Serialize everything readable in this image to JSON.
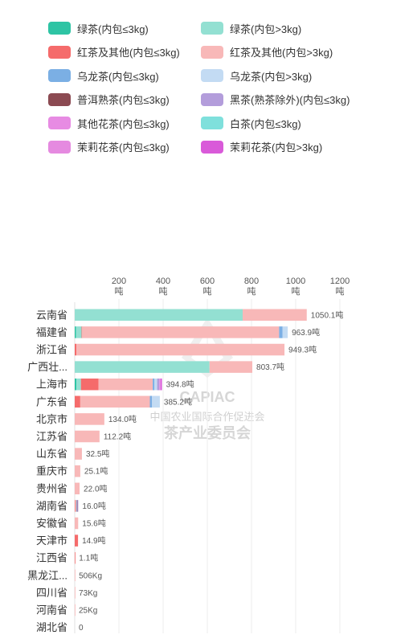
{
  "legend": [
    {
      "name": "绿茶(内包≤3kg)",
      "color": "#2ec4a4"
    },
    {
      "name": "绿茶(内包>3kg)",
      "color": "#93e0d2"
    },
    {
      "name": "红茶及其他(内包≤3kg)",
      "color": "#f56b6b"
    },
    {
      "name": "红茶及其他(内包>3kg)",
      "color": "#f8b8b8"
    },
    {
      "name": "乌龙茶(内包≤3kg)",
      "color": "#7bafe4"
    },
    {
      "name": "乌龙茶(内包>3kg)",
      "color": "#c3dbf3"
    },
    {
      "name": "普洱熟茶(内包≤3kg)",
      "color": "#8b4a52"
    },
    {
      "name": "黑茶(熟茶除外)(内包≤3kg)",
      "color": "#b39ddb"
    },
    {
      "name": "其他花茶(内包≤3kg)",
      "color": "#e78be3"
    },
    {
      "name": "白茶(内包≤3kg)",
      "color": "#7fe0dc"
    },
    {
      "name": "茉莉花茶(内包≤3kg)",
      "color": "#e58ae0"
    },
    {
      "name": "茉莉花茶(内包>3kg)",
      "color": "#d95ad9"
    }
  ],
  "watermark": {
    "logo": "CAPIAC",
    "org": "中国农业国际合作促进会",
    "committee": "茶产业委员会"
  },
  "chart_data": {
    "type": "bar",
    "orientation": "horizontal",
    "stacked": true,
    "xlim": [
      0,
      1200
    ],
    "xticks": [
      {
        "value": 200,
        "label": "200",
        "unit": "吨"
      },
      {
        "value": 400,
        "label": "400",
        "unit": "吨"
      },
      {
        "value": 600,
        "label": "600",
        "unit": "吨"
      },
      {
        "value": 800,
        "label": "800",
        "unit": "吨"
      },
      {
        "value": 1000,
        "label": "1000",
        "unit": "吨"
      },
      {
        "value": 1200,
        "label": "1200",
        "unit": "吨"
      }
    ],
    "categories": [
      "云南省",
      "福建省",
      "浙江省",
      "广西壮...",
      "上海市",
      "广东省",
      "北京市",
      "江苏省",
      "山东省",
      "重庆市",
      "贵州省",
      "湖南省",
      "安徽省",
      "天津市",
      "江西省",
      "黑龙江...",
      "四川省",
      "河南省",
      "湖北省"
    ],
    "totals": [
      "1050.1吨",
      "963.9吨",
      "949.3吨",
      "803.7吨",
      "394.8吨",
      "385.2吨",
      "134.0吨",
      "112.2吨",
      "32.5吨",
      "25.1吨",
      "22.0吨",
      "16.0吨",
      "15.6吨",
      "14.9吨",
      "1.1吨",
      "506Kg",
      "73Kg",
      "25Kg",
      "0"
    ],
    "series": [
      {
        "name": "绿茶(内包≤3kg)",
        "values": [
          0,
          6,
          0,
          0,
          8,
          0,
          0,
          0,
          0,
          0,
          0,
          0,
          0,
          0,
          0,
          0,
          0,
          0,
          0
        ]
      },
      {
        "name": "绿茶(内包>3kg)",
        "values": [
          760,
          25,
          0,
          610,
          20,
          0,
          0,
          0,
          0,
          0,
          0,
          0,
          0,
          0,
          0,
          0,
          0,
          0,
          0
        ]
      },
      {
        "name": "红茶及其他(内包≤3kg)",
        "values": [
          0,
          2,
          8,
          0,
          80,
          25,
          0,
          0,
          0,
          0,
          0,
          2,
          0,
          14.9,
          1.1,
          0,
          0,
          0,
          0
        ]
      },
      {
        "name": "红茶及其他(内包>3kg)",
        "values": [
          290.1,
          892,
          941.3,
          193.7,
          245,
          315,
          134,
          112.2,
          32.5,
          25.1,
          22,
          5,
          15.6,
          0,
          0,
          0.506,
          0.073,
          0.025,
          0
        ]
      },
      {
        "name": "乌龙茶(内包≤3kg)",
        "values": [
          0,
          15,
          0,
          0,
          8,
          10,
          0,
          0,
          0,
          0,
          0,
          3,
          0,
          0,
          0,
          0,
          0,
          0,
          0
        ]
      },
      {
        "name": "乌龙茶(内包>3kg)",
        "values": [
          0,
          23.9,
          0,
          0,
          12,
          35.2,
          0,
          0,
          0,
          0,
          0,
          0,
          0,
          0,
          0,
          0,
          0,
          0,
          0
        ]
      },
      {
        "name": "普洱熟茶(内包≤3kg)",
        "values": [
          0,
          0,
          0,
          0,
          0,
          0,
          0,
          0,
          0,
          0,
          0,
          2,
          0,
          0,
          0,
          0,
          0,
          0,
          0
        ]
      },
      {
        "name": "黑茶(熟茶除外)(内包≤3kg)",
        "values": [
          0,
          0,
          0,
          0,
          10,
          0,
          0,
          0,
          0,
          0,
          0,
          4,
          0,
          0,
          0,
          0,
          0,
          0,
          0
        ]
      },
      {
        "name": "其他花茶(内包≤3kg)",
        "values": [
          0,
          0,
          0,
          0,
          5.8,
          0,
          0,
          0,
          0,
          0,
          0,
          0,
          0,
          0,
          0,
          0,
          0,
          0,
          0
        ]
      },
      {
        "name": "白茶(内包≤3kg)",
        "values": [
          0,
          0,
          0,
          0,
          0,
          0,
          0,
          0,
          0,
          0,
          0,
          0,
          0,
          0,
          0,
          0,
          0,
          0,
          0
        ]
      },
      {
        "name": "茉莉花茶(内包≤3kg)",
        "values": [
          0,
          0,
          0,
          0,
          0,
          0,
          0,
          0,
          0,
          0,
          0,
          0,
          0,
          0,
          0,
          0,
          0,
          0,
          0
        ]
      },
      {
        "name": "茉莉花茶(内包>3kg)",
        "values": [
          0,
          0,
          0,
          0,
          6,
          0,
          0,
          0,
          0,
          0,
          0,
          0,
          0,
          0,
          0,
          0,
          0,
          0,
          0
        ]
      }
    ]
  }
}
